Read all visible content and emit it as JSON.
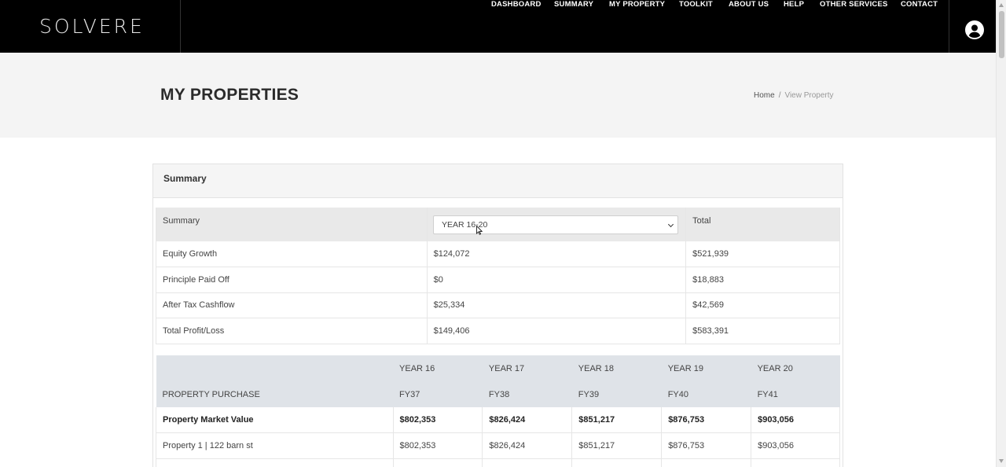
{
  "brand": {
    "logo_text": "SOLVERE"
  },
  "nav": {
    "items": [
      "DASHBOARD",
      "SUMMARY",
      "MY PROPERTY",
      "TOOLKIT",
      "ABOUT US",
      "HELP",
      "OTHER SERVICES",
      "CONTACT"
    ]
  },
  "page": {
    "title": "MY PROPERTIES",
    "breadcrumb": {
      "home": "Home",
      "separator": "/",
      "current": "View Property"
    }
  },
  "summary_panel": {
    "title": "Summary",
    "header": {
      "label": "Summary",
      "select_value": "YEAR 16-20",
      "total_label": "Total"
    },
    "rows": [
      {
        "label": "Equity Growth",
        "value": "$124,072",
        "total": "$521,939"
      },
      {
        "label": "Principle Paid Off",
        "value": "$0",
        "total": "$18,883"
      },
      {
        "label": "After Tax Cashflow",
        "value": "$25,334",
        "total": "$42,569"
      },
      {
        "label": "Total Profit/Loss",
        "value": "$149,406",
        "total": "$583,391"
      }
    ]
  },
  "purchase_table": {
    "section_label": "PROPERTY PURCHASE",
    "years": [
      "YEAR 16",
      "YEAR 17",
      "YEAR 18",
      "YEAR 19",
      "YEAR 20"
    ],
    "fys": [
      "FY37",
      "FY38",
      "FY39",
      "FY40",
      "FY41"
    ],
    "rows": [
      {
        "label": "Property Market Value",
        "bold": true,
        "values": [
          "$802,353",
          "$826,424",
          "$851,217",
          "$876,753",
          "$903,056"
        ]
      },
      {
        "label": "Property 1 | 122 barn st",
        "bold": false,
        "values": [
          "$802,353",
          "$826,424",
          "$851,217",
          "$876,753",
          "$903,056"
        ]
      }
    ]
  },
  "colors": {
    "nav_bg": "#000000",
    "band_bg": "#f4f4f4",
    "table_head_bg": "#dfe3e8"
  }
}
